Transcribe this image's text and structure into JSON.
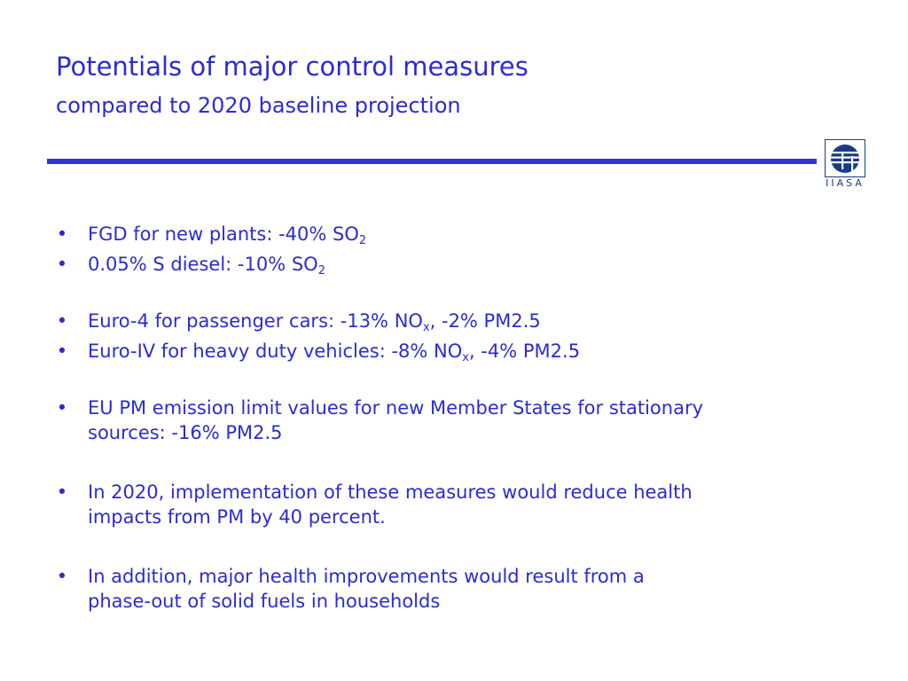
{
  "slide": {
    "title": "Potentials of major control measures",
    "subtitle": "compared to 2020 baseline projection"
  },
  "logo": {
    "text": "IIASA"
  },
  "bullets": [
    {
      "pre": "FGD for new plants: -40% SO",
      "sub": "2",
      "post": ""
    },
    {
      "pre": "0.05% S diesel: -10% SO",
      "sub": "2",
      "post": ""
    },
    {
      "pre": "Euro-4 for passenger cars: -13% NO",
      "sub": "x",
      "post": ", -2% PM2.5"
    },
    {
      "pre": "Euro-IV for heavy duty vehicles: -8% NO",
      "sub": "x",
      "post": ", -4% PM2.5"
    },
    {
      "line1": "EU PM emission limit values for new Member States for stationary",
      "line2": "sources: -16% PM2.5"
    },
    {
      "line1": "In 2020, implementation of these measures would reduce health",
      "line2": "impacts from PM by 40 percent."
    },
    {
      "line1": "In addition, major health improvements would result from a",
      "line2": "phase-out of solid fuels in households"
    }
  ],
  "bullet_symbol": "•",
  "colors": {
    "text": "#2b2bd6",
    "rule": "#3333dd",
    "logo": "#1a3a8a"
  }
}
